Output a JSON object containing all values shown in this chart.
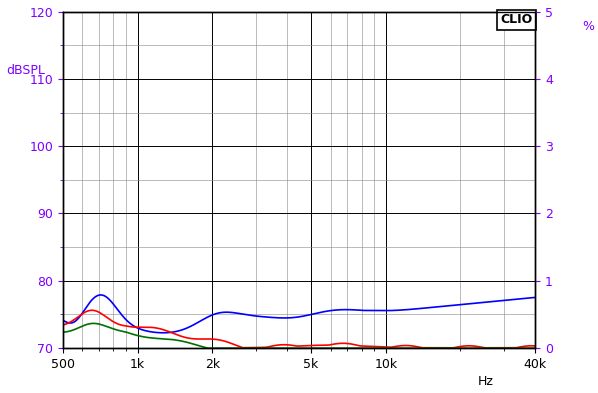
{
  "ylabel_left": "dBSPL",
  "ylabel_right": "%",
  "xlabel": "Hz",
  "clio_label": "CLIO",
  "ylim_left": [
    70,
    120
  ],
  "ylim_right": [
    0,
    5
  ],
  "yticks_left": [
    70,
    80,
    90,
    100,
    110,
    120
  ],
  "yticks_right": [
    0,
    1,
    2,
    3,
    4,
    5
  ],
  "xmin": 500,
  "xmax": 40000,
  "xtick_positions": [
    500,
    1000,
    2000,
    5000,
    10000,
    40000
  ],
  "xtick_labels": [
    "500",
    "1k",
    "2k",
    "5k",
    "10k",
    "40k"
  ],
  "bg_color": "#ffffff",
  "grid_major_color": "#000000",
  "grid_minor_color": "#888888",
  "line_blue_color": "#0000ff",
  "line_red_color": "#ff0000",
  "line_green_color": "#007000",
  "line_width": 1.2,
  "tick_label_color": "#7f00ff",
  "label_color": "#7f00ff"
}
